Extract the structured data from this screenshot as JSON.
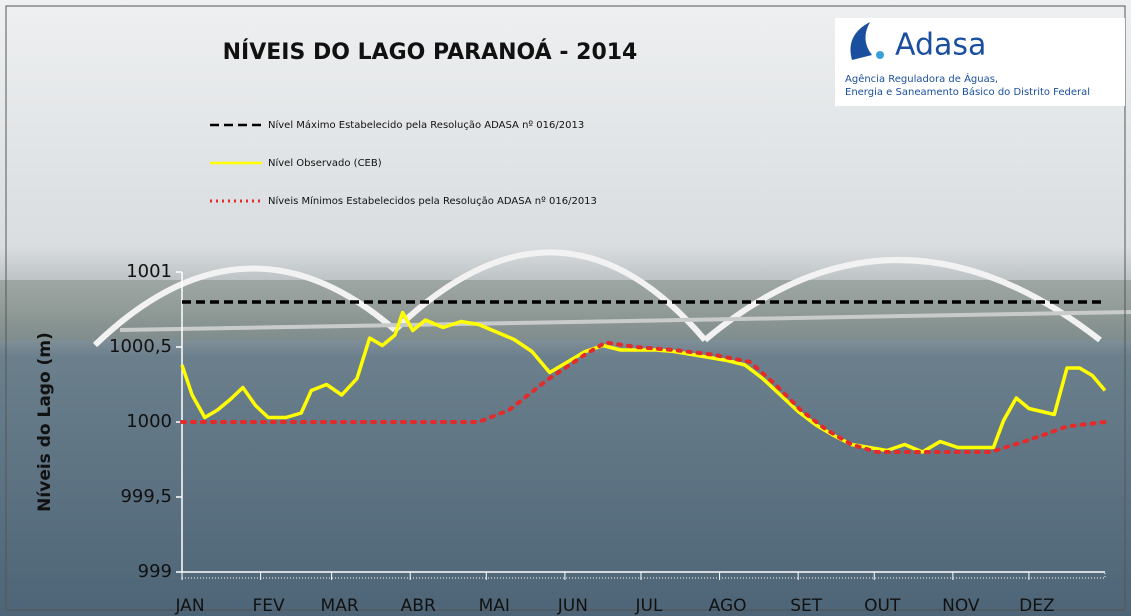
{
  "chart_data": {
    "type": "line",
    "title": "NÍVEIS DO LAGO PARANOÁ - 2014",
    "y_label": "Níveis do Lago (m)",
    "xlim": [
      1,
      365
    ],
    "xticks": [
      {
        "value": 1,
        "label": "JAN"
      },
      {
        "value": 32,
        "label": "FEV"
      },
      {
        "value": 60,
        "label": "MAR"
      },
      {
        "value": 91,
        "label": "ABR"
      },
      {
        "value": 121,
        "label": "MAI"
      },
      {
        "value": 152,
        "label": "JUN"
      },
      {
        "value": 182,
        "label": "JUL"
      },
      {
        "value": 213,
        "label": "AGO"
      },
      {
        "value": 244,
        "label": "SET"
      },
      {
        "value": 274,
        "label": "OUT"
      },
      {
        "value": 305,
        "label": "NOV"
      },
      {
        "value": 335,
        "label": "DEZ"
      }
    ],
    "ylim": [
      999,
      1001
    ],
    "yticks": [
      999,
      {
        "value": 999.5,
        "label": "999,5"
      },
      1000,
      {
        "value": 1000.5,
        "label": "1000,5"
      },
      1001
    ],
    "series": [
      {
        "name": "Nível Máximo Estabelecido pela Resolução ADASA nº 016/2013",
        "color": "#000000",
        "style": "dashed",
        "x": [
          1,
          365
        ],
        "values": [
          1000.8,
          1000.8
        ]
      },
      {
        "name": "Nível Observado (CEB)",
        "color": "#ffff00",
        "style": "solid",
        "x": [
          1,
          5,
          10,
          15,
          20,
          25,
          30,
          35,
          42,
          48,
          52,
          58,
          64,
          70,
          75,
          80,
          85,
          88,
          92,
          97,
          104,
          111,
          118,
          125,
          132,
          139,
          146,
          153,
          160,
          167,
          174,
          181,
          188,
          195,
          202,
          209,
          216,
          223,
          230,
          237,
          244,
          251,
          258,
          265,
          272,
          279,
          286,
          293,
          300,
          307,
          314,
          321,
          325,
          330,
          335,
          340,
          345,
          350,
          355,
          360,
          365
        ],
        "values": [
          1000.38,
          1000.18,
          1000.03,
          1000.08,
          1000.15,
          1000.23,
          1000.11,
          1000.03,
          1000.03,
          1000.06,
          1000.21,
          1000.25,
          1000.18,
          1000.29,
          1000.56,
          1000.51,
          1000.58,
          1000.73,
          1000.61,
          1000.68,
          1000.63,
          1000.67,
          1000.65,
          1000.6,
          1000.55,
          1000.47,
          1000.33,
          1000.4,
          1000.47,
          1000.51,
          1000.48,
          1000.48,
          1000.48,
          1000.47,
          1000.45,
          1000.43,
          1000.41,
          1000.38,
          1000.29,
          1000.18,
          1000.07,
          999.98,
          999.91,
          999.85,
          999.83,
          999.81,
          999.85,
          999.8,
          999.87,
          999.83,
          999.83,
          999.83,
          1000.01,
          1000.16,
          1000.09,
          1000.07,
          1000.05,
          1000.36,
          1000.36,
          1000.31,
          1000.21
        ]
      },
      {
        "name": "Níveis Mínimos Estabelecidos pela Resolução ADASA nº 016/2013",
        "color": "#e32b2b",
        "style": "dotted",
        "x": [
          1,
          30,
          60,
          90,
          118,
          130,
          145,
          160,
          168,
          180,
          195,
          210,
          225,
          235,
          245,
          255,
          265,
          275,
          290,
          305,
          320,
          335,
          350,
          365
        ],
        "values": [
          1000,
          1000,
          1000,
          1000,
          1000,
          1000.08,
          1000.28,
          1000.45,
          1000.53,
          1000.5,
          1000.48,
          1000.45,
          1000.4,
          1000.25,
          1000.08,
          999.95,
          999.85,
          999.8,
          999.8,
          999.8,
          999.8,
          999.88,
          999.97,
          1000
        ]
      }
    ]
  },
  "logo": {
    "name": "Adasa",
    "line1": "Agência Reguladora de Águas,",
    "line2": "Energia e Saneamento Básico do Distrito Federal"
  }
}
